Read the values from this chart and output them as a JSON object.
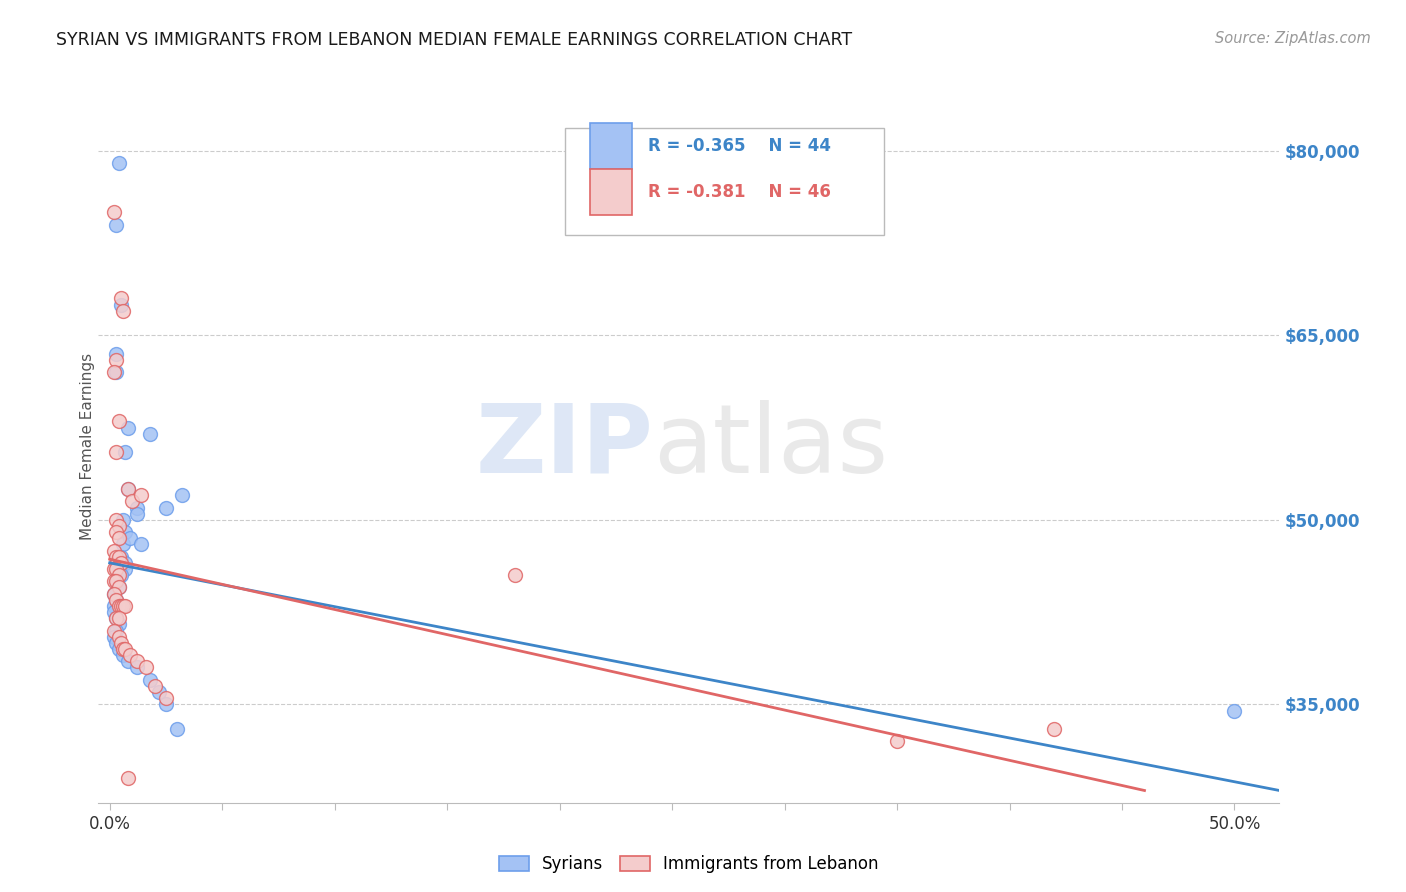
{
  "title": "SYRIAN VS IMMIGRANTS FROM LEBANON MEDIAN FEMALE EARNINGS CORRELATION CHART",
  "source": "Source: ZipAtlas.com",
  "ylabel": "Median Female Earnings",
  "ytick_labels": [
    "$80,000",
    "$65,000",
    "$50,000",
    "$35,000"
  ],
  "ytick_values": [
    80000,
    65000,
    50000,
    35000
  ],
  "ylim": [
    27000,
    85000
  ],
  "xlim": [
    -0.005,
    0.52
  ],
  "watermark_zip": "ZIP",
  "watermark_atlas": "atlas",
  "legend_blue_r": "-0.365",
  "legend_blue_n": "44",
  "legend_pink_r": "-0.381",
  "legend_pink_n": "46",
  "legend_label_blue": "Syrians",
  "legend_label_pink": "Immigrants from Lebanon",
  "blue_color": "#a4c2f4",
  "pink_color": "#f4cccc",
  "blue_edge_color": "#6d9eeb",
  "pink_edge_color": "#e06666",
  "blue_line_color": "#3d85c8",
  "pink_line_color": "#cc4125",
  "blue_scatter": [
    [
      0.004,
      79000
    ],
    [
      0.003,
      74000
    ],
    [
      0.005,
      67500
    ],
    [
      0.003,
      63500
    ],
    [
      0.003,
      62000
    ],
    [
      0.008,
      57500
    ],
    [
      0.007,
      55500
    ],
    [
      0.018,
      57000
    ],
    [
      0.008,
      52500
    ],
    [
      0.012,
      51000
    ],
    [
      0.012,
      50500
    ],
    [
      0.025,
      51000
    ],
    [
      0.032,
      52000
    ],
    [
      0.006,
      50000
    ],
    [
      0.007,
      49000
    ],
    [
      0.006,
      48000
    ],
    [
      0.009,
      48500
    ],
    [
      0.014,
      48000
    ],
    [
      0.005,
      47000
    ],
    [
      0.007,
      46500
    ],
    [
      0.003,
      46500
    ],
    [
      0.004,
      46000
    ],
    [
      0.007,
      46000
    ],
    [
      0.005,
      45500
    ],
    [
      0.003,
      45000
    ],
    [
      0.004,
      44500
    ],
    [
      0.002,
      44000
    ],
    [
      0.003,
      43500
    ],
    [
      0.002,
      43000
    ],
    [
      0.002,
      42500
    ],
    [
      0.003,
      42000
    ],
    [
      0.004,
      41500
    ],
    [
      0.003,
      41000
    ],
    [
      0.002,
      40500
    ],
    [
      0.003,
      40000
    ],
    [
      0.004,
      39500
    ],
    [
      0.006,
      39000
    ],
    [
      0.008,
      38500
    ],
    [
      0.012,
      38000
    ],
    [
      0.018,
      37000
    ],
    [
      0.022,
      36000
    ],
    [
      0.025,
      35000
    ],
    [
      0.03,
      33000
    ],
    [
      0.5,
      34500
    ]
  ],
  "pink_scatter": [
    [
      0.002,
      75000
    ],
    [
      0.005,
      68000
    ],
    [
      0.006,
      67000
    ],
    [
      0.003,
      63000
    ],
    [
      0.002,
      62000
    ],
    [
      0.004,
      58000
    ],
    [
      0.003,
      55500
    ],
    [
      0.008,
      52500
    ],
    [
      0.01,
      51500
    ],
    [
      0.014,
      52000
    ],
    [
      0.003,
      50000
    ],
    [
      0.004,
      49500
    ],
    [
      0.003,
      49000
    ],
    [
      0.004,
      48500
    ],
    [
      0.002,
      47500
    ],
    [
      0.003,
      47000
    ],
    [
      0.004,
      47000
    ],
    [
      0.005,
      46500
    ],
    [
      0.002,
      46000
    ],
    [
      0.003,
      46000
    ],
    [
      0.004,
      45500
    ],
    [
      0.002,
      45000
    ],
    [
      0.003,
      45000
    ],
    [
      0.004,
      44500
    ],
    [
      0.002,
      44000
    ],
    [
      0.003,
      43500
    ],
    [
      0.004,
      43000
    ],
    [
      0.005,
      43000
    ],
    [
      0.006,
      43000
    ],
    [
      0.007,
      43000
    ],
    [
      0.003,
      42000
    ],
    [
      0.004,
      42000
    ],
    [
      0.002,
      41000
    ],
    [
      0.004,
      40500
    ],
    [
      0.005,
      40000
    ],
    [
      0.006,
      39500
    ],
    [
      0.007,
      39500
    ],
    [
      0.009,
      39000
    ],
    [
      0.012,
      38500
    ],
    [
      0.016,
      38000
    ],
    [
      0.02,
      36500
    ],
    [
      0.025,
      35500
    ],
    [
      0.18,
      45500
    ],
    [
      0.35,
      32000
    ],
    [
      0.42,
      33000
    ],
    [
      0.008,
      29000
    ]
  ],
  "blue_line_x": [
    0.0,
    0.52
  ],
  "blue_line_y": [
    46500,
    28000
  ],
  "pink_line_x": [
    0.0,
    0.46
  ],
  "pink_line_y": [
    46800,
    28000
  ],
  "background_color": "#ffffff",
  "grid_color": "#cccccc",
  "title_color": "#1a1a1a",
  "ytick_color": "#3d85c8",
  "source_color": "#999999"
}
